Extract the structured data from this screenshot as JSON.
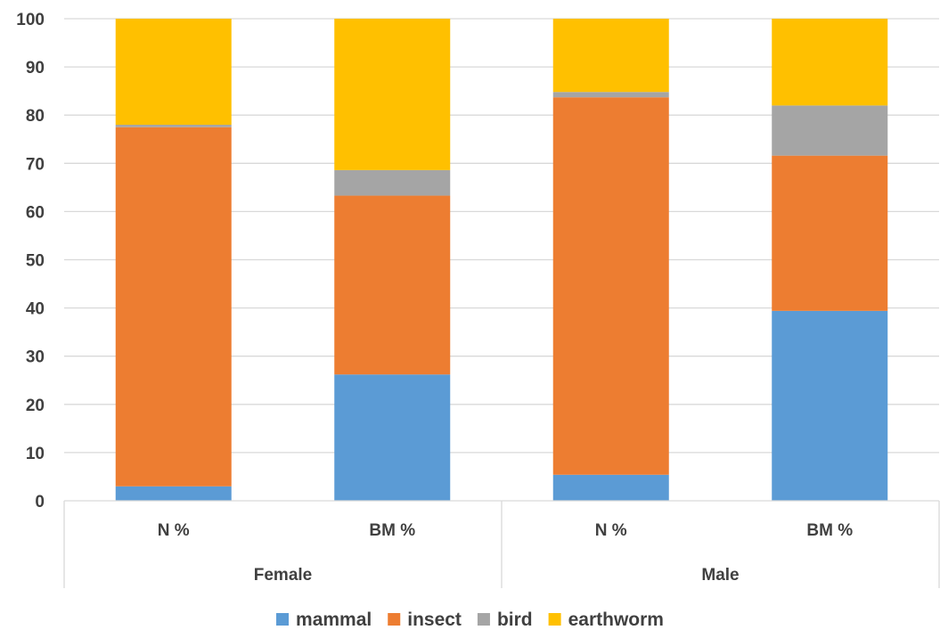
{
  "chart_data": {
    "type": "bar",
    "stacked": true,
    "title": "",
    "xlabel": "",
    "ylabel": "",
    "ylim": [
      0,
      100
    ],
    "yticks": [
      0,
      10,
      20,
      30,
      40,
      50,
      60,
      70,
      80,
      90,
      100
    ],
    "grid": true,
    "legend_position": "bottom",
    "categories": [
      "N %",
      "BM %",
      "N %",
      "BM %"
    ],
    "groups": [
      {
        "label": "Female",
        "categories": [
          0,
          1
        ]
      },
      {
        "label": "Male",
        "categories": [
          2,
          3
        ]
      }
    ],
    "series": [
      {
        "name": "mammal",
        "color": "#5B9BD5",
        "values": [
          3,
          26.2,
          5.4,
          39.4
        ]
      },
      {
        "name": "insect",
        "color": "#ED7D31",
        "values": [
          74.5,
          37.1,
          78.3,
          32.2
        ]
      },
      {
        "name": "bird",
        "color": "#A5A5A5",
        "values": [
          0.5,
          5.3,
          1.1,
          10.4
        ]
      },
      {
        "name": "earthworm",
        "color": "#FFC000",
        "values": [
          22,
          31.4,
          15.2,
          18
        ]
      }
    ]
  }
}
